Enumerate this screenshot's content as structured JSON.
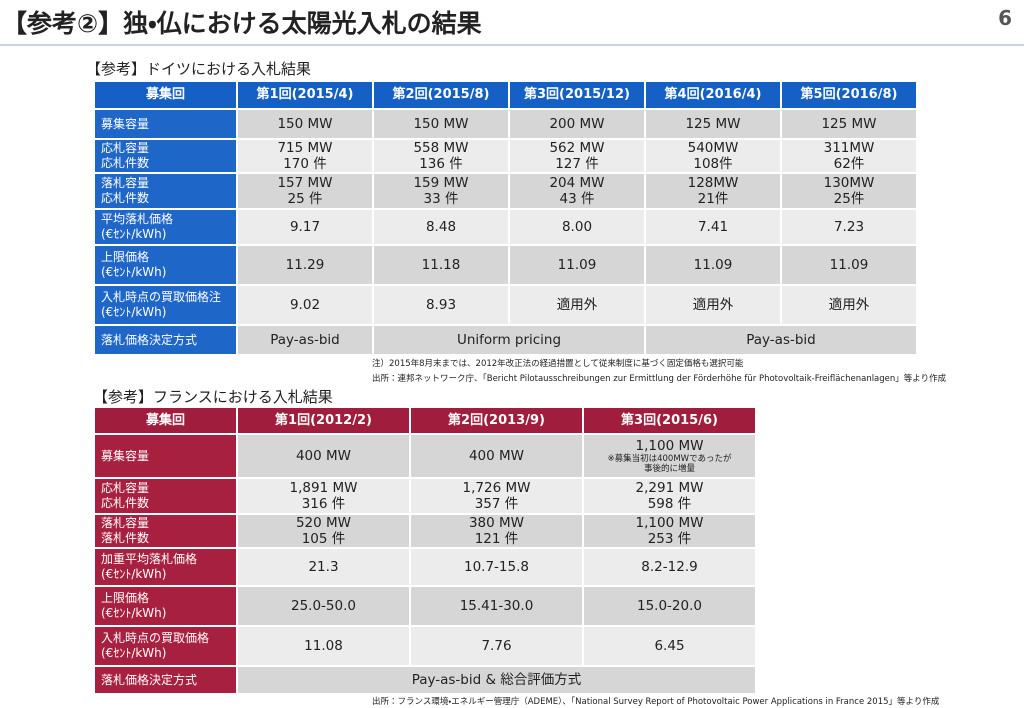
{
  "header": {
    "title": "【参考②】独・仏における太陽光入札の結果",
    "page": "6"
  },
  "germany": {
    "caption": "【参考】ドイツにおける入札結果",
    "columns": [
      "募集回",
      "第1回(2015/4)",
      "第2回(2015/8)",
      "第3回(2015/12)",
      "第4回(2016/4)",
      "第5回(2016/8)"
    ],
    "rows": [
      [
        "募集容量",
        "150 MW",
        "150 MW",
        "200 MW",
        "125 MW",
        "125 MW"
      ],
      [
        "応札容量\n応札件数",
        "715 MW\n170 件",
        "558 MW\n136 件",
        "562 MW\n127 件",
        "540MW\n108件",
        "311MW\n62件"
      ],
      [
        "落札容量\n応札件数",
        "157 MW\n25 件",
        "159 MW\n33 件",
        "204 MW\n43 件",
        "128MW\n21件",
        "130MW\n25件"
      ],
      [
        "平均落札価格\n(€ｾﾝﾄ/kWh)",
        "9.17",
        "8.48",
        "8.00",
        "7.41",
        "7.23"
      ],
      [
        "上限価格\n(€ｾﾝﾄ/kWh)",
        "11.29",
        "11.18",
        "11.09",
        "11.09",
        "11.09"
      ],
      [
        "入札時点の買取価格注\n(€ｾﾝﾄ/kWh)",
        "9.02",
        "8.93",
        "適用外",
        "適用外",
        "適用外"
      ]
    ],
    "method": {
      "label": "落札価格決定方式",
      "cells": [
        "Pay-as-bid",
        "Uniform pricing",
        "Pay-as-bid"
      ]
    },
    "notes": [
      "注）2015年8月末までは、2012年改正法の経過措置として従来制度に基づく固定価格も選択可能",
      "出所：連邦ネットワーク庁、「Bericht Pilotausschreibungen zur Ermittlung der Förderhöhe für Photovoltaik-Freiflächenanlagen」等より作成"
    ]
  },
  "france": {
    "caption": "【参考】フランスにおける入札結果",
    "columns": [
      "募集回",
      "第1回(2012/2)",
      "第2回(2013/9)",
      "第3回(2015/6)"
    ],
    "rows": [
      [
        "募集容量",
        "400 MW",
        "400 MW",
        "1,100 MW"
      ],
      [
        "応札容量\n応札件数",
        "1,891 MW\n316 件",
        "1,726 MW\n357 件",
        "2,291 MW\n598 件"
      ],
      [
        "落札容量\n落札件数",
        "520 MW\n105 件",
        "380 MW\n121 件",
        "1,100 MW\n253 件"
      ],
      [
        "加重平均落札価格\n(€ｾﾝﾄ/kWh)",
        "21.3",
        "10.7-15.8",
        "8.2-12.9"
      ],
      [
        "上限価格\n(€ｾﾝﾄ/kWh)",
        "25.0-50.0",
        "15.41-30.0",
        "15.0-20.0"
      ],
      [
        "入札時点の買取価格\n(€ｾﾝﾄ/kWh)",
        "11.08",
        "7.76",
        "6.45"
      ]
    ],
    "capacity_note": "※募集当初は400MWであったが\n事後的に増量",
    "method": {
      "label": "落札価格決定方式",
      "cells": [
        "Pay-as-bid & 総合評価方式"
      ]
    },
    "notes": [
      "出所：フランス環境・エネルギー管理庁（ADEME）、「National Survey Report of Photovoltaic Power Applications in France 2015」等より作成"
    ]
  }
}
